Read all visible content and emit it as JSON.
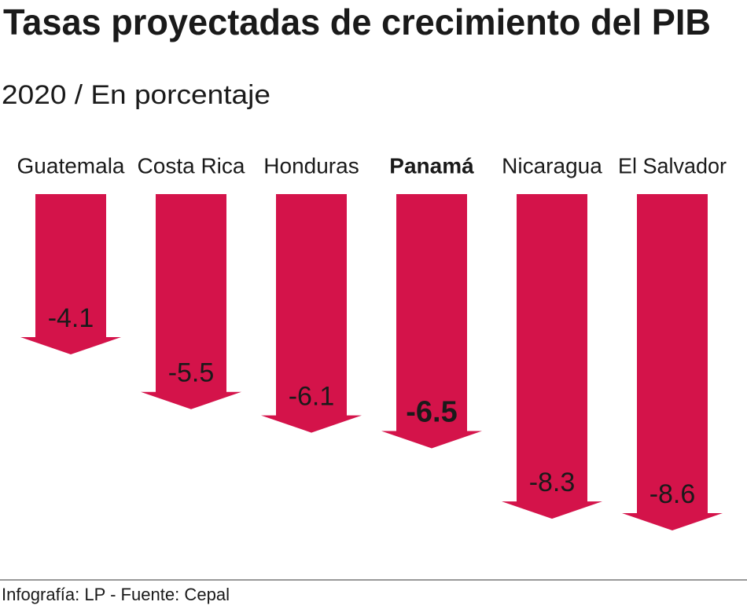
{
  "chart_data": {
    "type": "arrow-bar",
    "title": "Tasas proyectadas de crecimiento del PIB",
    "subtitle": "2020 / En porcentaje",
    "categories": [
      "Guatemala",
      "Costa Rica",
      "Honduras",
      "Panamá",
      "Nicaragua",
      "El Salvador"
    ],
    "values": [
      -4.1,
      -5.5,
      -6.1,
      -6.5,
      -8.3,
      -8.6
    ],
    "bold": [
      false,
      false,
      false,
      true,
      false,
      false
    ],
    "color": "#d4134a",
    "source": "Infografía: LP - Fuente: Cepal"
  }
}
